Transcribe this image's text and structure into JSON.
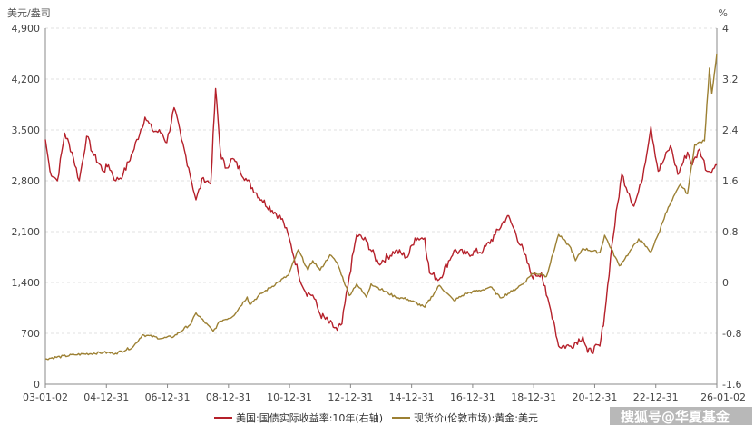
{
  "chart_data": {
    "type": "line",
    "left_unit": "美元/盎司",
    "right_unit": "%",
    "x_ticks": [
      "03-01-02",
      "04-12-31",
      "06-12-31",
      "08-12-31",
      "10-12-31",
      "12-12-31",
      "14-12-31",
      "16-12-31",
      "18-12-31",
      "20-12-31",
      "22-12-31",
      "26-01-02"
    ],
    "y_left": {
      "ticks": [
        "0",
        "700",
        "1,400",
        "2,100",
        "2,800",
        "3,500",
        "4,200",
        "4,900"
      ],
      "range": [
        0,
        4900
      ]
    },
    "y_right": {
      "ticks": [
        "-1.6",
        "-0.8",
        "0",
        "0.8",
        "1.6",
        "2.4",
        "3.2",
        "4"
      ],
      "range": [
        -1.6,
        4.0
      ]
    },
    "grid": true,
    "legend_position": "bottom",
    "series": [
      {
        "name": "美国:国债实际收益率:10年(右轴)",
        "axis": "right",
        "color": "#b5202a",
        "points": [
          [
            "2003-01-02",
            2.25
          ],
          [
            "2003-03-01",
            1.75
          ],
          [
            "2003-06-01",
            1.6
          ],
          [
            "2003-09-01",
            2.35
          ],
          [
            "2003-12-01",
            2.05
          ],
          [
            "2004-03-01",
            1.6
          ],
          [
            "2004-06-01",
            2.3
          ],
          [
            "2004-09-01",
            2.0
          ],
          [
            "2004-12-31",
            1.75
          ],
          [
            "2005-03-01",
            1.85
          ],
          [
            "2005-06-01",
            1.6
          ],
          [
            "2005-09-01",
            1.7
          ],
          [
            "2005-12-31",
            2.05
          ],
          [
            "2006-06-01",
            2.6
          ],
          [
            "2006-09-01",
            2.4
          ],
          [
            "2006-12-31",
            2.35
          ],
          [
            "2007-03-01",
            2.2
          ],
          [
            "2007-06-01",
            2.75
          ],
          [
            "2007-09-01",
            2.25
          ],
          [
            "2007-12-01",
            1.8
          ],
          [
            "2008-03-01",
            1.3
          ],
          [
            "2008-06-01",
            1.65
          ],
          [
            "2008-09-01",
            1.55
          ],
          [
            "2008-11-01",
            3.05
          ],
          [
            "2008-12-31",
            2.05
          ],
          [
            "2009-03-01",
            1.8
          ],
          [
            "2009-06-01",
            1.95
          ],
          [
            "2009-12-01",
            1.6
          ],
          [
            "2010-06-01",
            1.3
          ],
          [
            "2010-12-31",
            1.05
          ],
          [
            "2011-03-01",
            0.95
          ],
          [
            "2011-06-01",
            0.6
          ],
          [
            "2011-09-01",
            0.15
          ],
          [
            "2011-12-01",
            -0.15
          ],
          [
            "2012-03-01",
            -0.2
          ],
          [
            "2012-06-01",
            -0.5
          ],
          [
            "2012-12-31",
            -0.75
          ],
          [
            "2013-03-01",
            -0.65
          ],
          [
            "2013-06-01",
            0.1
          ],
          [
            "2013-09-01",
            0.75
          ],
          [
            "2013-12-31",
            0.65
          ],
          [
            "2014-06-01",
            0.3
          ],
          [
            "2014-12-31",
            0.5
          ],
          [
            "2015-06-01",
            0.4
          ],
          [
            "2015-09-01",
            0.7
          ],
          [
            "2015-12-31",
            0.7
          ],
          [
            "2016-03-01",
            0.15
          ],
          [
            "2016-07-01",
            0.05
          ],
          [
            "2016-12-31",
            0.5
          ],
          [
            "2017-06-01",
            0.45
          ],
          [
            "2017-12-31",
            0.5
          ],
          [
            "2018-06-01",
            0.75
          ],
          [
            "2018-11-01",
            1.05
          ],
          [
            "2018-12-31",
            0.9
          ],
          [
            "2019-06-01",
            0.45
          ],
          [
            "2019-09-01",
            0.1
          ],
          [
            "2019-12-31",
            0.15
          ],
          [
            "2020-03-01",
            -0.2
          ],
          [
            "2020-06-01",
            -0.6
          ],
          [
            "2020-08-01",
            -1.0
          ],
          [
            "2020-12-31",
            -1.0
          ],
          [
            "2021-06-01",
            -0.85
          ],
          [
            "2021-08-01",
            -1.1
          ],
          [
            "2021-12-31",
            -1.0
          ],
          [
            "2022-03-01",
            -0.5
          ],
          [
            "2022-06-01",
            0.6
          ],
          [
            "2022-10-01",
            1.7
          ],
          [
            "2022-12-31",
            1.4
          ],
          [
            "2023-03-01",
            1.2
          ],
          [
            "2023-06-01",
            1.55
          ],
          [
            "2023-10-01",
            2.45
          ],
          [
            "2023-12-31",
            1.75
          ],
          [
            "2024-03-01",
            1.9
          ],
          [
            "2024-06-01",
            2.15
          ],
          [
            "2024-09-01",
            1.7
          ],
          [
            "2024-12-31",
            2.05
          ],
          [
            "2025-03-01",
            1.85
          ],
          [
            "2025-06-01",
            2.1
          ],
          [
            "2025-09-01",
            1.75
          ],
          [
            "2025-12-01",
            1.8
          ],
          [
            "2026-01-02",
            1.85
          ]
        ]
      },
      {
        "name": "现货价(伦敦市场):黄金:美元",
        "axis": "left",
        "color": "#9c8033",
        "points": [
          [
            "2003-01-02",
            350
          ],
          [
            "2003-12-31",
            405
          ],
          [
            "2004-12-31",
            437
          ],
          [
            "2005-06-01",
            425
          ],
          [
            "2005-12-31",
            510
          ],
          [
            "2006-05-01",
            680
          ],
          [
            "2006-12-31",
            630
          ],
          [
            "2007-06-01",
            660
          ],
          [
            "2007-12-31",
            835
          ],
          [
            "2008-03-01",
            980
          ],
          [
            "2008-10-01",
            730
          ],
          [
            "2008-12-31",
            870
          ],
          [
            "2009-06-01",
            930
          ],
          [
            "2009-12-01",
            1200
          ],
          [
            "2009-12-31",
            1100
          ],
          [
            "2010-06-01",
            1250
          ],
          [
            "2010-12-31",
            1410
          ],
          [
            "2011-05-01",
            1500
          ],
          [
            "2011-09-01",
            1850
          ],
          [
            "2011-12-31",
            1570
          ],
          [
            "2012-03-01",
            1700
          ],
          [
            "2012-06-01",
            1570
          ],
          [
            "2012-10-01",
            1780
          ],
          [
            "2012-12-31",
            1670
          ],
          [
            "2013-06-01",
            1220
          ],
          [
            "2013-09-01",
            1380
          ],
          [
            "2013-12-31",
            1200
          ],
          [
            "2014-03-01",
            1380
          ],
          [
            "2014-12-31",
            1200
          ],
          [
            "2015-06-01",
            1170
          ],
          [
            "2015-12-31",
            1060
          ],
          [
            "2016-07-01",
            1360
          ],
          [
            "2016-12-31",
            1150
          ],
          [
            "2017-06-01",
            1250
          ],
          [
            "2017-12-31",
            1300
          ],
          [
            "2018-04-01",
            1340
          ],
          [
            "2018-08-01",
            1190
          ],
          [
            "2018-12-31",
            1280
          ],
          [
            "2019-06-01",
            1400
          ],
          [
            "2019-09-01",
            1520
          ],
          [
            "2019-12-31",
            1520
          ],
          [
            "2020-03-01",
            1480
          ],
          [
            "2020-08-01",
            2060
          ],
          [
            "2020-12-31",
            1880
          ],
          [
            "2021-03-01",
            1700
          ],
          [
            "2021-06-01",
            1870
          ],
          [
            "2021-12-31",
            1810
          ],
          [
            "2022-03-01",
            2050
          ],
          [
            "2022-09-01",
            1630
          ],
          [
            "2022-12-31",
            1810
          ],
          [
            "2023-05-01",
            2000
          ],
          [
            "2023-10-01",
            1820
          ],
          [
            "2023-12-31",
            2060
          ],
          [
            "2024-04-01",
            2350
          ],
          [
            "2024-10-01",
            2750
          ],
          [
            "2024-12-31",
            2620
          ],
          [
            "2025-04-01",
            3300
          ],
          [
            "2025-08-01",
            3350
          ],
          [
            "2025-10-01",
            4350
          ],
          [
            "2025-11-01",
            4000
          ],
          [
            "2026-01-02",
            4550
          ]
        ]
      }
    ]
  },
  "watermark": {
    "text": "搜狐号@华夏基金"
  }
}
